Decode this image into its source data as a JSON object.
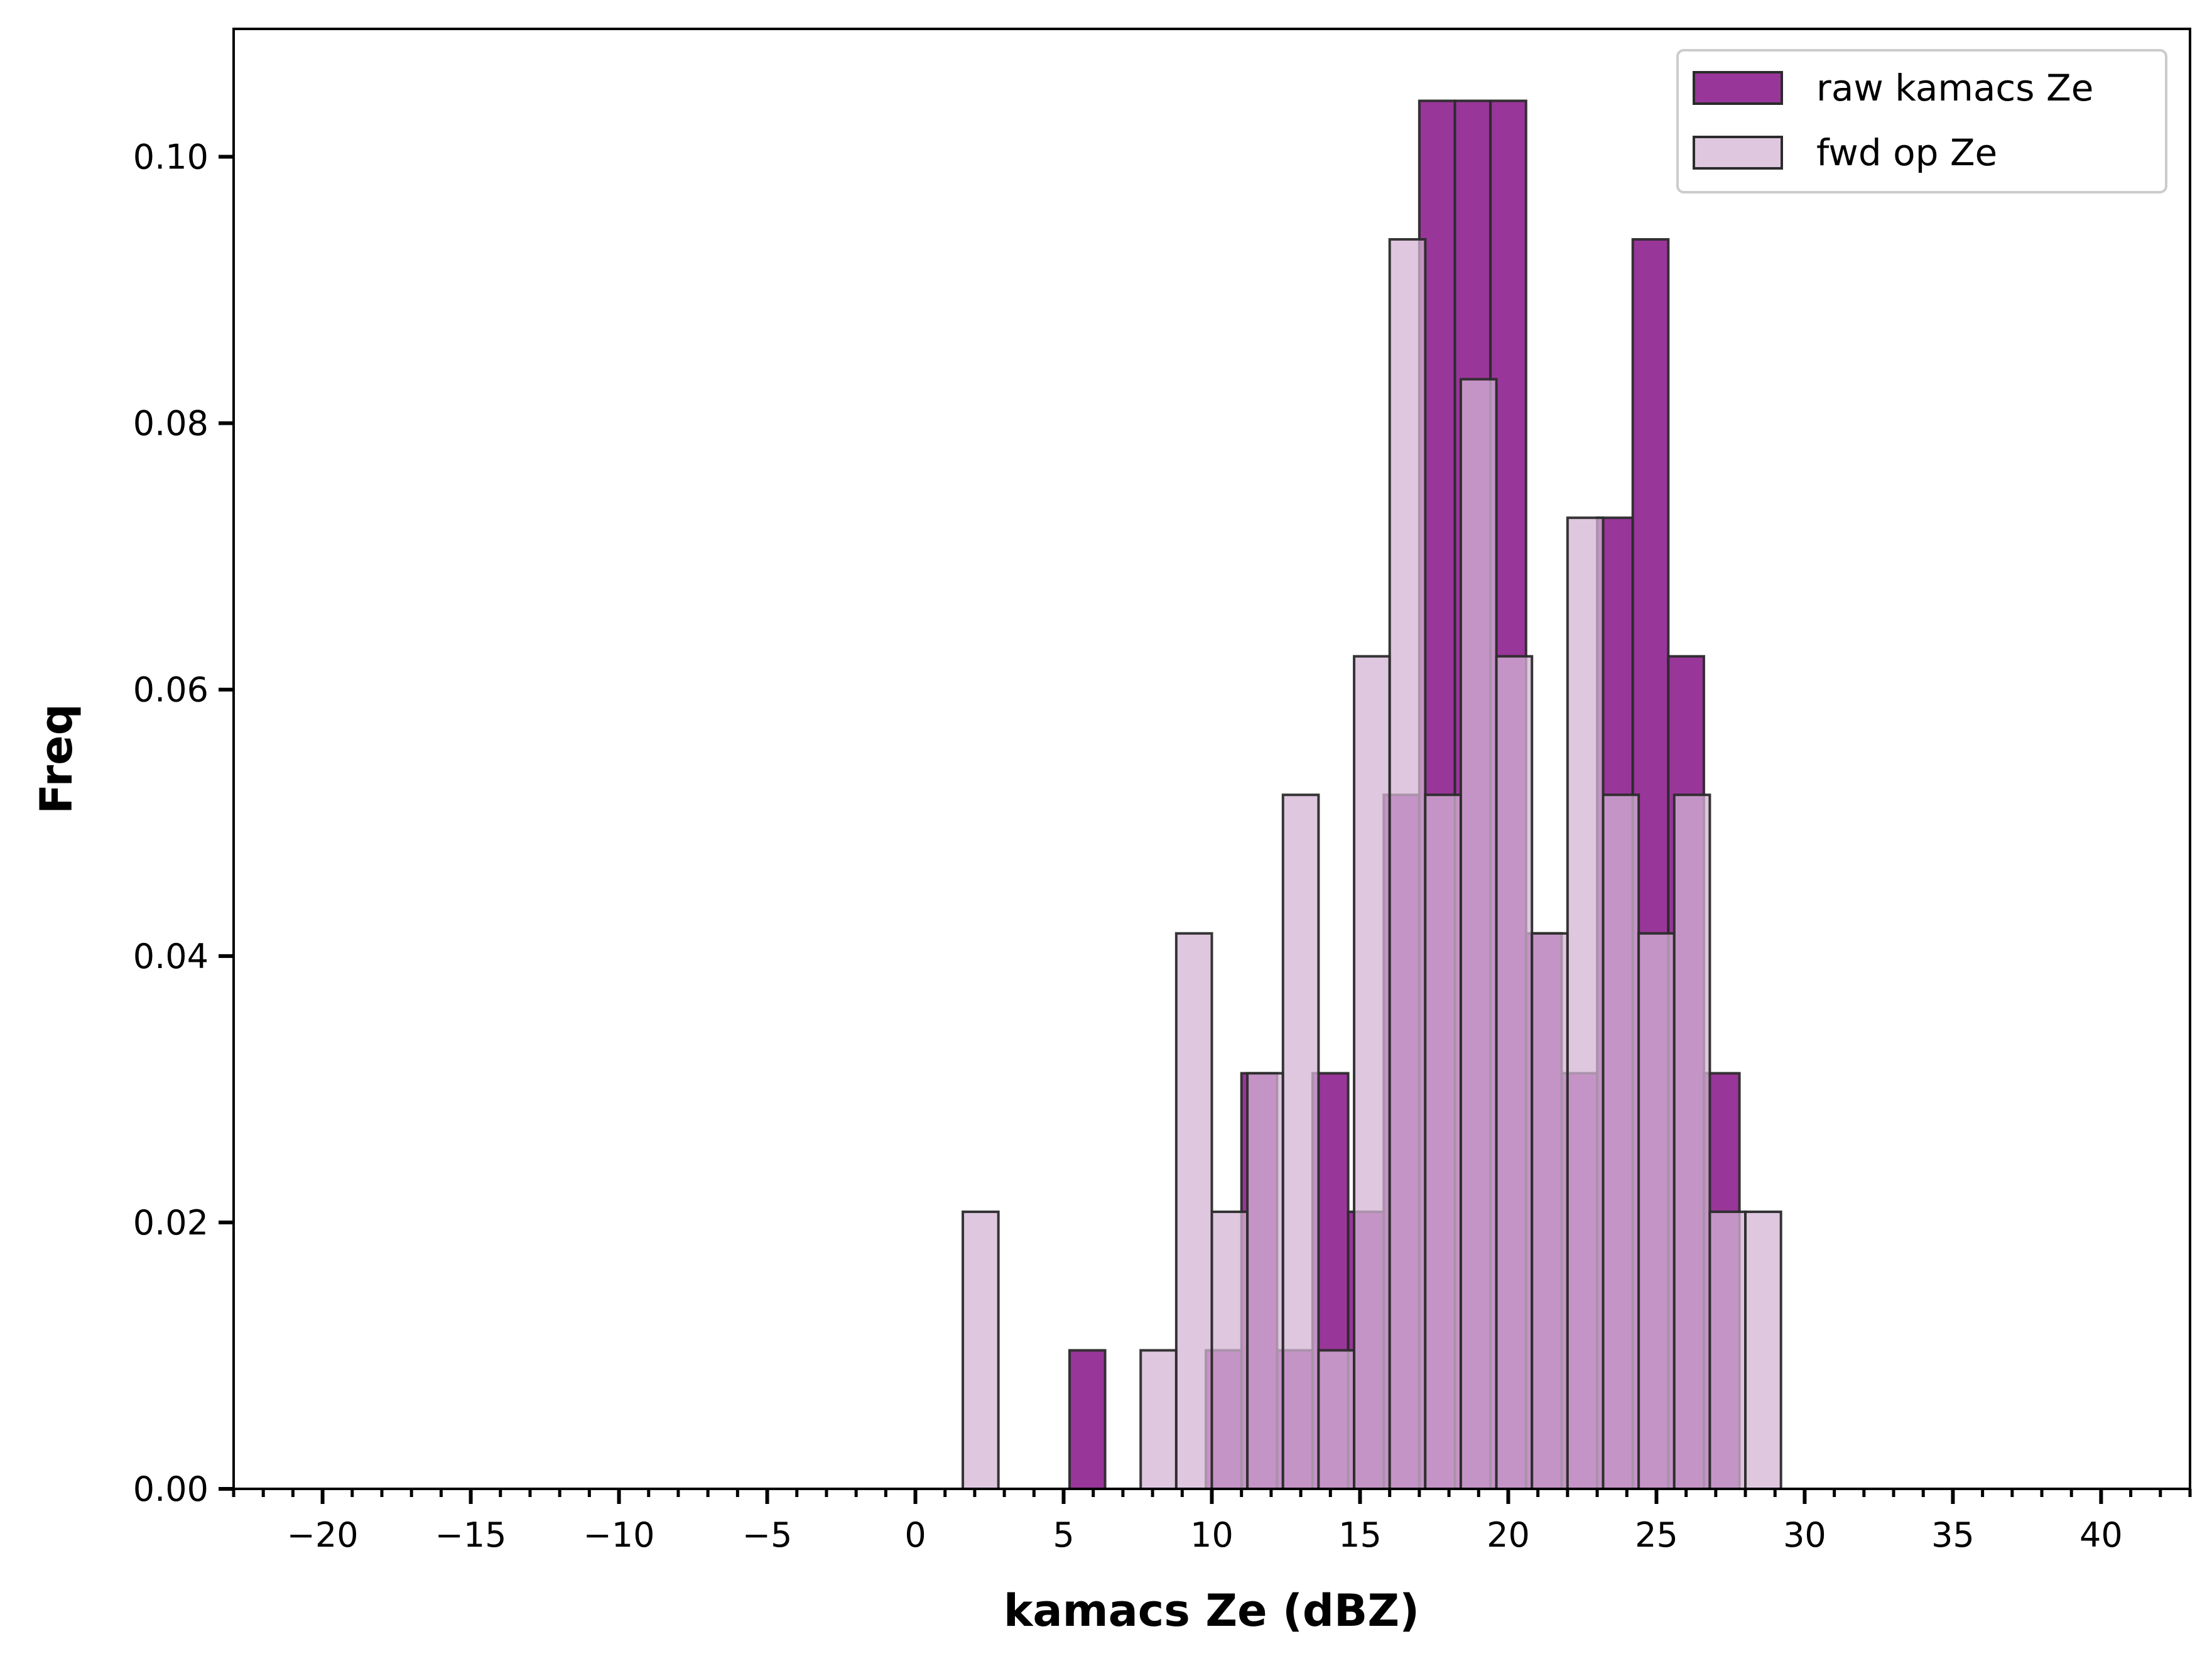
{
  "chart_data": {
    "type": "bar",
    "subtype": "overlaid-histogram",
    "xlabel": "kamacs Ze (dBZ)",
    "ylabel": "Freq",
    "xlim": [
      -23,
      43
    ],
    "ylim": [
      0,
      0.1096
    ],
    "xticks": [
      -20,
      -15,
      -10,
      -5,
      0,
      5,
      10,
      15,
      20,
      25,
      30,
      35,
      40
    ],
    "xtick_labels": [
      "−20",
      "−15",
      "−10",
      "−5",
      "0",
      "5",
      "10",
      "15",
      "20",
      "25",
      "30",
      "35",
      "40"
    ],
    "yticks": [
      0,
      0.02,
      0.04,
      0.06,
      0.08,
      0.1
    ],
    "ytick_labels": [
      "0.00",
      "0.02",
      "0.04",
      "0.06",
      "0.08",
      "0.10"
    ],
    "bin_width": 1.2,
    "legend": {
      "location": "top-right",
      "entries": [
        "raw kamacs Ze",
        "fwd op Ze"
      ]
    },
    "series": [
      {
        "name": "raw kamacs Ze",
        "color": "#8b1a8b",
        "opacity": 0.88,
        "bins": [
          {
            "left": 5.2,
            "value": 0.0104
          },
          {
            "left": 9.8,
            "value": 0.0104
          },
          {
            "left": 11.0,
            "value": 0.0312
          },
          {
            "left": 12.2,
            "value": 0.0104
          },
          {
            "left": 13.4,
            "value": 0.0312
          },
          {
            "left": 14.6,
            "value": 0.0208
          },
          {
            "left": 15.8,
            "value": 0.0521
          },
          {
            "left": 17.0,
            "value": 0.1042
          },
          {
            "left": 18.2,
            "value": 0.1042
          },
          {
            "left": 19.4,
            "value": 0.1042
          },
          {
            "left": 20.6,
            "value": 0.0417
          },
          {
            "left": 21.8,
            "value": 0.0312
          },
          {
            "left": 23.0,
            "value": 0.0729
          },
          {
            "left": 24.2,
            "value": 0.0938
          },
          {
            "left": 25.4,
            "value": 0.0625
          },
          {
            "left": 26.6,
            "value": 0.0312
          }
        ]
      },
      {
        "name": "fwd op Ze",
        "color": "#d4b4d6",
        "opacity": 0.75,
        "bins": [
          {
            "left": 1.6,
            "value": 0.0208
          },
          {
            "left": 7.6,
            "value": 0.0104
          },
          {
            "left": 8.8,
            "value": 0.0417
          },
          {
            "left": 10.0,
            "value": 0.0208
          },
          {
            "left": 11.2,
            "value": 0.0312
          },
          {
            "left": 12.4,
            "value": 0.0521
          },
          {
            "left": 13.6,
            "value": 0.0104
          },
          {
            "left": 14.8,
            "value": 0.0625
          },
          {
            "left": 16.0,
            "value": 0.0938
          },
          {
            "left": 17.2,
            "value": 0.0521
          },
          {
            "left": 18.4,
            "value": 0.0833
          },
          {
            "left": 19.6,
            "value": 0.0625
          },
          {
            "left": 20.8,
            "value": 0.0417
          },
          {
            "left": 22.0,
            "value": 0.0729
          },
          {
            "left": 23.2,
            "value": 0.0521
          },
          {
            "left": 24.4,
            "value": 0.0417
          },
          {
            "left": 25.6,
            "value": 0.0521
          },
          {
            "left": 26.8,
            "value": 0.0208
          },
          {
            "left": 28.0,
            "value": 0.0208
          }
        ]
      }
    ]
  }
}
